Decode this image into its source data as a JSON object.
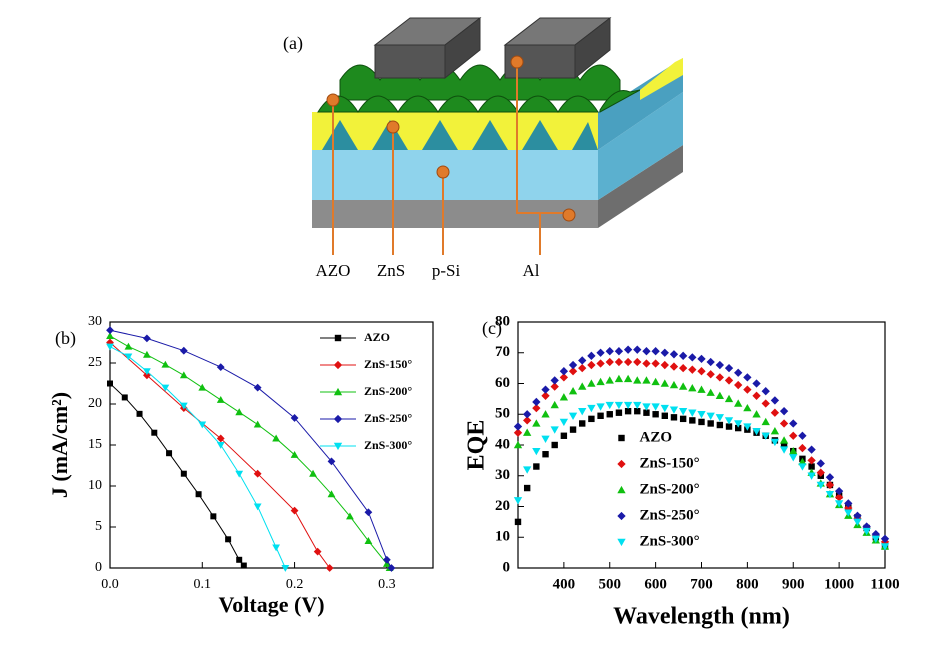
{
  "diagram": {
    "label": "(a)",
    "callouts": [
      "AZO",
      "ZnS",
      "p-Si",
      "Al"
    ]
  },
  "chart_data": [
    {
      "type": "line",
      "panel_label": "(b)",
      "x_label": "Voltage (V)",
      "y_label": "J (mA/cm²)",
      "xlim": [
        0,
        0.35
      ],
      "xticks": [
        {
          "value": 0,
          "label": "0.0"
        },
        {
          "value": 0.1,
          "label": "0.1"
        },
        {
          "value": 0.2,
          "label": "0.2"
        },
        {
          "value": 0.3,
          "label": "0.3"
        }
      ],
      "ylim": [
        0,
        30
      ],
      "yticks": [
        0,
        5,
        10,
        15,
        20,
        25,
        30
      ],
      "legend": "upper right",
      "series": [
        {
          "name": "AZO",
          "color": "#000000",
          "marker": "square",
          "x": [
            0,
            0.016,
            0.032,
            0.048,
            0.064,
            0.08,
            0.096,
            0.112,
            0.128,
            0.14,
            0.145
          ],
          "values": [
            22.5,
            20.8,
            18.8,
            16.5,
            14,
            11.5,
            9,
            6.3,
            3.5,
            1,
            0.3
          ]
        },
        {
          "name": "ZnS-150°",
          "color": "#e01010",
          "marker": "diamond",
          "x": [
            0,
            0.04,
            0.08,
            0.12,
            0.16,
            0.2,
            0.225,
            0.238
          ],
          "values": [
            27.5,
            23.5,
            19.5,
            15.8,
            11.5,
            7,
            2,
            0
          ]
        },
        {
          "name": "ZnS-200°",
          "color": "#10c010",
          "marker": "triangle-up",
          "x": [
            0,
            0.02,
            0.04,
            0.06,
            0.08,
            0.1,
            0.12,
            0.14,
            0.16,
            0.18,
            0.2,
            0.22,
            0.24,
            0.26,
            0.28,
            0.3,
            0.303
          ],
          "values": [
            28.3,
            27,
            26,
            24.8,
            23.5,
            22,
            20.5,
            19,
            17.5,
            15.8,
            13.8,
            11.5,
            9,
            6.3,
            3.3,
            0.5,
            0
          ]
        },
        {
          "name": "ZnS-250°",
          "color": "#1a1aa8",
          "marker": "diamond",
          "x": [
            0,
            0.04,
            0.08,
            0.12,
            0.16,
            0.2,
            0.24,
            0.28,
            0.3,
            0.305
          ],
          "values": [
            29,
            28,
            26.5,
            24.5,
            22,
            18.3,
            13,
            6.8,
            1,
            0
          ]
        },
        {
          "name": "ZnS-300°",
          "color": "#00e0f0",
          "marker": "triangle-down",
          "x": [
            0,
            0.02,
            0.04,
            0.06,
            0.08,
            0.1,
            0.12,
            0.14,
            0.16,
            0.18,
            0.19
          ],
          "values": [
            27,
            25.8,
            24,
            22,
            19.8,
            17.5,
            15,
            11.5,
            7.5,
            2.5,
            0
          ]
        }
      ]
    },
    {
      "type": "scatter",
      "panel_label": "(c)",
      "x_label": "Wavelength (nm)",
      "y_label": "EQE",
      "xlim": [
        300,
        1100
      ],
      "xticks": [
        400,
        500,
        600,
        700,
        800,
        900,
        1000,
        1100
      ],
      "ylim": [
        0,
        80
      ],
      "yticks": [
        0,
        10,
        20,
        30,
        40,
        50,
        60,
        70,
        80
      ],
      "legend": "center",
      "x": [
        300,
        320,
        340,
        360,
        380,
        400,
        420,
        440,
        460,
        480,
        500,
        520,
        540,
        560,
        580,
        600,
        620,
        640,
        660,
        680,
        700,
        720,
        740,
        760,
        780,
        800,
        820,
        840,
        860,
        880,
        900,
        920,
        940,
        960,
        980,
        1000,
        1020,
        1040,
        1060,
        1080,
        1100
      ],
      "series": [
        {
          "name": "AZO",
          "color": "#000000",
          "marker": "square",
          "values": [
            15,
            26,
            33,
            37,
            40,
            43,
            45,
            47,
            48.5,
            49.5,
            50,
            50.5,
            51,
            51,
            50.5,
            50,
            49.5,
            49,
            48.5,
            48,
            47.5,
            47,
            46.5,
            46,
            45.5,
            45,
            44,
            43,
            41.5,
            40,
            38,
            35.5,
            33,
            30,
            27,
            23.5,
            20,
            16.5,
            13,
            10,
            7
          ]
        },
        {
          "name": "ZnS-150°",
          "color": "#e01010",
          "marker": "diamond",
          "values": [
            44,
            48,
            52,
            56,
            59,
            62,
            64,
            65,
            66,
            66.5,
            67,
            67,
            67,
            67,
            66.5,
            66.5,
            66,
            65.5,
            65,
            64.5,
            64,
            63,
            62,
            61,
            59.5,
            58,
            56,
            53.5,
            50.5,
            47,
            43,
            39,
            35,
            31,
            27,
            23,
            19.5,
            16,
            13,
            10.5,
            8.5
          ]
        },
        {
          "name": "ZnS-200°",
          "color": "#10c010",
          "marker": "triangle-up",
          "values": [
            40,
            44,
            47,
            50,
            53,
            55.5,
            57.5,
            59,
            60,
            60.5,
            61,
            61.5,
            61.5,
            61,
            61,
            60.5,
            60,
            59.5,
            59,
            58.5,
            58,
            57,
            56,
            55,
            53.5,
            52,
            50,
            47.5,
            44.5,
            41.5,
            38,
            34.5,
            31,
            27.5,
            24,
            20.5,
            17,
            14,
            11.5,
            9,
            7
          ]
        },
        {
          "name": "ZnS-250°",
          "color": "#1a1aa8",
          "marker": "diamond",
          "values": [
            46,
            50,
            54,
            58,
            61,
            64,
            66,
            67.5,
            69,
            70,
            70.5,
            70.5,
            71,
            71,
            70.5,
            70.5,
            70,
            69.5,
            69,
            68.5,
            68,
            67,
            66,
            65,
            63.5,
            62,
            60,
            57.5,
            54.5,
            51,
            47,
            43,
            38.5,
            34,
            29.5,
            25,
            21,
            17,
            13.5,
            11,
            9.5
          ]
        },
        {
          "name": "ZnS-300°",
          "color": "#00e0f0",
          "marker": "triangle-down",
          "values": [
            22,
            32,
            38,
            42,
            45,
            47.5,
            49.5,
            51,
            52,
            52.5,
            53,
            53,
            53,
            53,
            52.5,
            52.5,
            52,
            51.5,
            51,
            50.5,
            50,
            49.5,
            49,
            48,
            47,
            46,
            44.5,
            43,
            41,
            38.5,
            36,
            33,
            30,
            27,
            24,
            21,
            18,
            15,
            12,
            9.5,
            7
          ]
        }
      ]
    }
  ]
}
